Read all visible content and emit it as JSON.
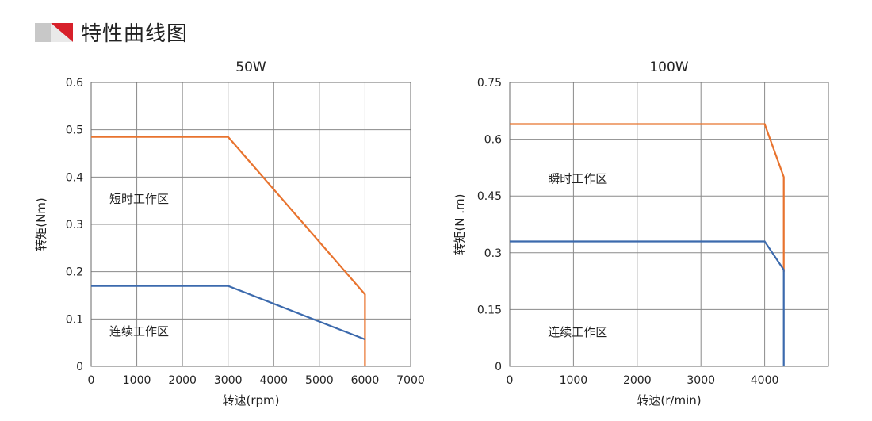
{
  "header": {
    "title": "特性曲线图",
    "accent_color": "#d7202a",
    "accent_gray": "#c8c8c8",
    "logo_icon": "red-triangle-banner-icon"
  },
  "chart_data": [
    {
      "type": "line",
      "title": "50W",
      "xlabel": "转速(rpm)",
      "ylabel": "转矩(Nm)",
      "xlim": [
        0,
        7000
      ],
      "ylim": [
        0,
        0.6
      ],
      "x_ticks": [
        0,
        1000,
        2000,
        3000,
        4000,
        5000,
        6000,
        7000
      ],
      "x_tick_labels": [
        "0",
        "1000",
        "2000",
        "3000",
        "4000",
        "5000",
        "6000",
        "7000"
      ],
      "y_ticks": [
        0,
        0.1,
        0.2,
        0.3,
        0.4,
        0.5,
        0.6
      ],
      "y_tick_labels": [
        "0",
        "0.1",
        "0.2",
        "0.3",
        "0.4",
        "0.5",
        "0.6"
      ],
      "grid": true,
      "series": [
        {
          "name": "短时工作区",
          "color": "#e8732e",
          "x": [
            0,
            3000,
            6000,
            6000
          ],
          "y": [
            0.485,
            0.485,
            0.152,
            0
          ]
        },
        {
          "name": "连续工作区",
          "color": "#3c6aad",
          "x": [
            0,
            3000,
            6000
          ],
          "y": [
            0.17,
            0.17,
            0.057
          ]
        }
      ],
      "annotations": [
        {
          "text": "短时工作区",
          "x": 400,
          "y": 0.345
        },
        {
          "text": "连续工作区",
          "x": 400,
          "y": 0.065
        }
      ]
    },
    {
      "type": "line",
      "title": "100W",
      "xlabel": "转速(r/min)",
      "ylabel": "转矩(N .m)",
      "xlim": [
        0,
        5000
      ],
      "ylim": [
        0,
        0.75
      ],
      "x_ticks": [
        0,
        1000,
        2000,
        3000,
        4000,
        5000
      ],
      "x_tick_labels": [
        "0",
        "1000",
        "2000",
        "3000",
        "4000",
        ""
      ],
      "y_ticks": [
        0,
        0.15,
        0.3,
        0.45,
        0.6,
        0.75
      ],
      "y_tick_labels": [
        "0",
        "0.15",
        "0.3",
        "0.45",
        "0.6",
        "0.75"
      ],
      "grid": true,
      "series": [
        {
          "name": "瞬时工作区",
          "color": "#e8732e",
          "x": [
            0,
            4000,
            4300,
            4300
          ],
          "y": [
            0.64,
            0.64,
            0.5,
            0.25
          ]
        },
        {
          "name": "连续工作区",
          "color": "#3c6aad",
          "x": [
            0,
            4000,
            4300,
            4300
          ],
          "y": [
            0.33,
            0.33,
            0.255,
            0
          ]
        }
      ],
      "annotations": [
        {
          "text": "瞬时工作区",
          "x": 600,
          "y": 0.485
        },
        {
          "text": "连续工作区",
          "x": 600,
          "y": 0.08
        }
      ]
    }
  ]
}
